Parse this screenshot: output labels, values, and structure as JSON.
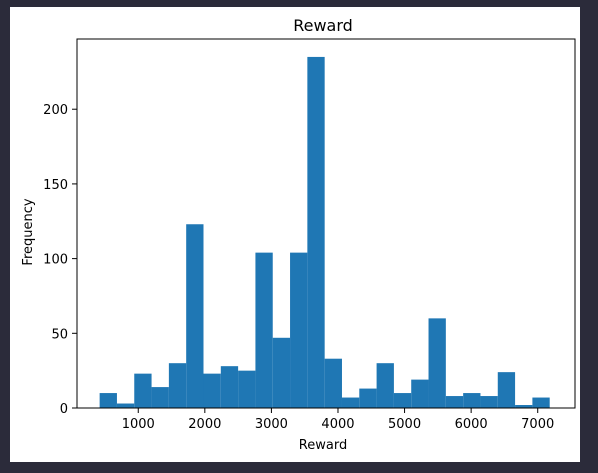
{
  "chart_data": {
    "type": "bar",
    "title": "Reward",
    "xlabel": "Reward",
    "ylabel": "Frequency",
    "xlim": [
      80,
      7560
    ],
    "ylim": [
      0,
      247
    ],
    "xticks": [
      1000,
      2000,
      3000,
      4000,
      5000,
      6000,
      7000
    ],
    "yticks": [
      0,
      50,
      100,
      150,
      200
    ],
    "bar_color": "#1f77b4",
    "bin_edges": [
      420,
      680,
      940,
      1200,
      1460,
      1720,
      1980,
      2240,
      2500,
      2760,
      3020,
      3280,
      3540,
      3800,
      4060,
      4320,
      4580,
      4840,
      5100,
      5360,
      5620,
      5880,
      6140,
      6400,
      6660,
      6920,
      7180
    ],
    "values": [
      10,
      3,
      23,
      14,
      30,
      123,
      23,
      28,
      25,
      104,
      47,
      104,
      235,
      33,
      7,
      13,
      30,
      10,
      19,
      60,
      8,
      10,
      8,
      24,
      2,
      7
    ],
    "grid": false
  }
}
